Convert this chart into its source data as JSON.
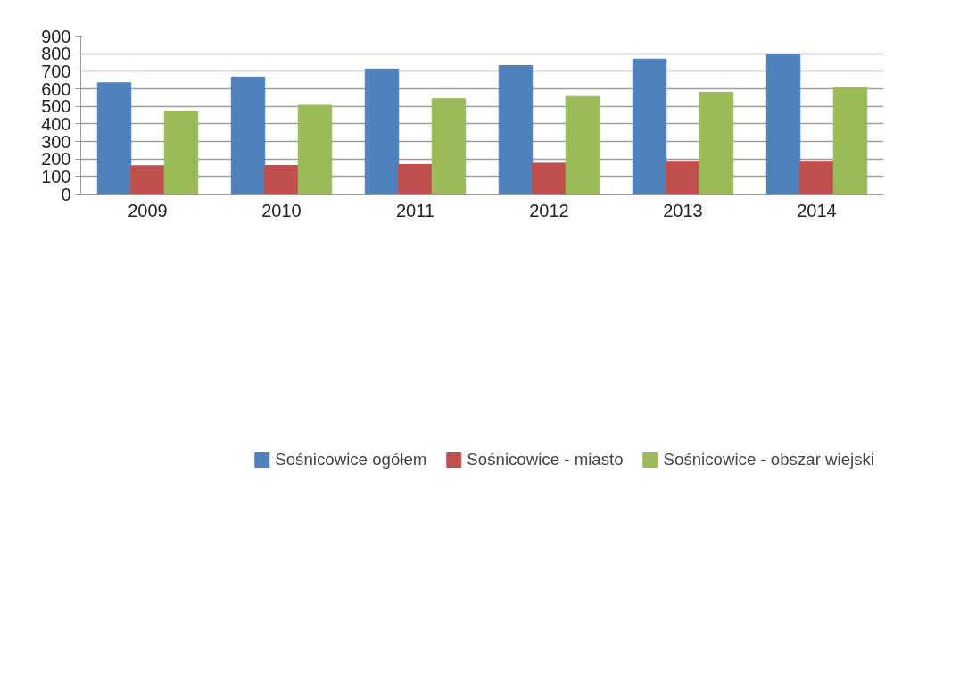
{
  "chart_data": {
    "type": "bar",
    "categories": [
      "2009",
      "2010",
      "2011",
      "2012",
      "2013",
      "2014"
    ],
    "series": [
      {
        "name": "Sośnicowice ogółem",
        "color": "#4f81bd",
        "values": [
          634,
          667,
          713,
          732,
          769,
          797
        ]
      },
      {
        "name": "Sośnicowice - miasto",
        "color": "#c0504d",
        "values": [
          161,
          163,
          168,
          176,
          187,
          187
        ]
      },
      {
        "name": "Sośnicowice - obszar wiejski",
        "color": "#9bbb59",
        "values": [
          473,
          506,
          543,
          556,
          580,
          608
        ]
      }
    ],
    "ylim": [
      0,
      900
    ],
    "yticks": [
      0,
      100,
      200,
      300,
      400,
      500,
      600,
      700,
      800,
      900
    ],
    "grid": "y",
    "legend": "bottom"
  }
}
